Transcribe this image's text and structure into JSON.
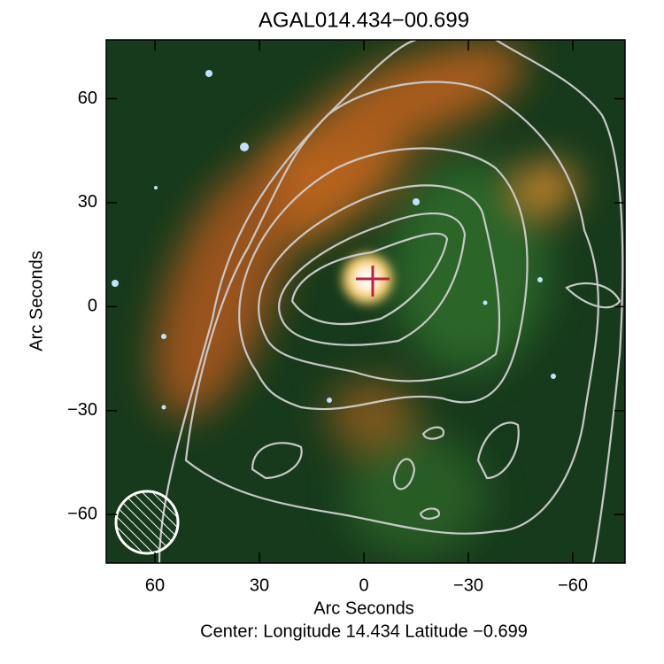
{
  "chart_data": {
    "type": "image",
    "title": "AGAL014.434−00.699",
    "x_label": "Arc Seconds",
    "y_label": "Arc Seconds",
    "footer": "Center:  Longitude 14.434 Latitude −0.699",
    "xlim": [
      74,
      -75
    ],
    "ylim": [
      -74,
      77
    ],
    "xticks": [
      60,
      30,
      0,
      {
        "value": -30,
        "label": "−30"
      },
      {
        "value": -60,
        "label": "−60"
      }
    ],
    "yticks": [
      {
        "value": -60,
        "label": "−60"
      },
      {
        "value": -30,
        "label": "−30"
      },
      0,
      30,
      60
    ]
  }
}
